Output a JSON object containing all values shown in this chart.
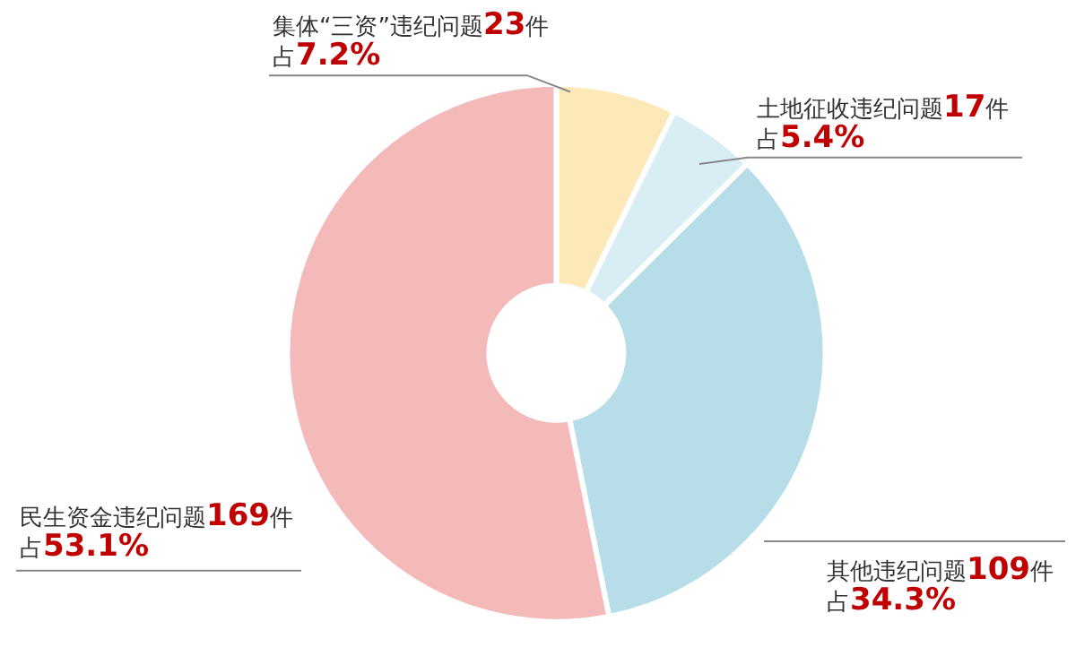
{
  "chart_data": {
    "type": "donut",
    "categories": [
      "集体“三资”违纪问题",
      "土地征收违纪问题",
      "其他违纪问题",
      "民生资金违纪问题"
    ],
    "values": [
      23,
      17,
      109,
      169
    ],
    "value_labels": [
      "23件",
      "17件",
      "109件",
      "169件"
    ],
    "annotations": [
      "占7.2%",
      "占5.4%",
      "占34.3%",
      "占53.1%"
    ],
    "colors": [
      "#fde9b8",
      "#d9eef4",
      "#b7dde8",
      "#f4b9b9"
    ],
    "legend": false
  }
}
